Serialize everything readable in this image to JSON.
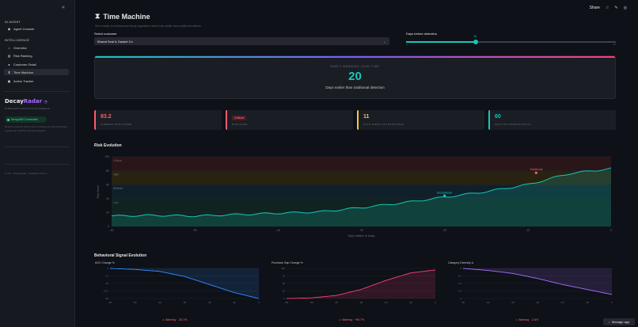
{
  "sidebar": {
    "agent_section": "AI AGENT",
    "agent_items": [
      {
        "icon": "robot-icon",
        "label": "Agent Console"
      }
    ],
    "intel_section": "INTELLIGENCE",
    "intel_items": [
      {
        "icon": "home-icon",
        "label": "Overview"
      },
      {
        "icon": "ranking-icon",
        "label": "Risk Ranking"
      },
      {
        "icon": "user-icon",
        "label": "Customer Detail"
      },
      {
        "icon": "hourglass-icon",
        "label": "Time Machine"
      },
      {
        "icon": "clipboard-icon",
        "label": "Action Tracker"
      }
    ],
    "brand_part1": "Decay",
    "brand_part2": "Radar",
    "brand_sub": "AI Behavioral Customer Decay Intelligence",
    "mongo_label": "MongoDB Connected",
    "desc": "Detects customer decay before it happens using behavioral signals and machine learning analytics.",
    "footer": "v1.0.0 · DecayRadar · Hackathon Demo"
  },
  "topbar": {
    "share": "Share"
  },
  "page": {
    "title": "Time Machine",
    "subtitle": "See exactly how behavioral decay algorithms detect risk earlier than traditional metrics",
    "select_label": "Select customer",
    "selected_customer": "Bharat Seal & Gasket Co",
    "slider_label": "Days before detection",
    "slider_value": "20",
    "slider_min": "0",
    "slider_max": "60"
  },
  "hero": {
    "caption": "EARLY WARNING LEAD TIME",
    "value": "20",
    "sub": "Days earlier than traditional detection"
  },
  "kpis": [
    {
      "value": "83.2",
      "label": "CURRENT RISK SCORE",
      "color": "#ff5c6c"
    },
    {
      "value": "Critical",
      "label": "RISK LEVEL",
      "color": "#ff5c6c"
    },
    {
      "value": "11",
      "label": "DAYS AHEAD OF TRADITIONAL",
      "color": "#f5c542"
    },
    {
      "value": "60",
      "label": "ANALYSIS WINDOW (DAYS)",
      "color": "#14c8b8"
    }
  ],
  "risk_section": "Risk Evolution",
  "signal_section": "Behavioral Signal Evolution",
  "chart_data": [
    {
      "type": "line",
      "title": "",
      "xlabel": "Days relative to today",
      "ylabel": "Risk Score",
      "x": [
        -60,
        -55,
        -50,
        -45,
        -40,
        -35,
        -30,
        -25,
        -20,
        -15,
        -10,
        -5,
        0
      ],
      "series": [
        {
          "values": [
            15,
            16,
            15,
            17,
            19,
            21,
            27,
            34,
            42,
            50,
            60,
            76,
            83
          ]
        }
      ],
      "ylim": [
        0,
        100
      ],
      "xlim": [
        -60,
        0
      ],
      "zones": [
        "Critical",
        "High",
        "Medium",
        "Low"
      ],
      "annotations": [
        {
          "label": "DecayRadar",
          "x": -20,
          "y": 44
        },
        {
          "label": "Traditional",
          "x": -9,
          "y": 77
        }
      ],
      "grid": true
    },
    {
      "type": "line",
      "title": "AOV Change %",
      "x": [
        -60,
        -50,
        -40,
        -30,
        -20,
        -10,
        0
      ],
      "series": [
        {
          "values": [
            0,
            -1,
            -3,
            -8,
            -16,
            -24,
            -30
          ]
        }
      ],
      "ylim": [
        -30,
        0
      ]
    },
    {
      "type": "line",
      "title": "Purchase Gap Change %",
      "x": [
        -60,
        -50,
        -40,
        -30,
        -20,
        -10,
        0
      ],
      "series": [
        {
          "values": [
            0,
            2,
            10,
            30,
            60,
            85,
            95
          ]
        }
      ],
      "ylim": [
        0,
        100
      ]
    },
    {
      "type": "line",
      "title": "Category Diversity Δ",
      "x": [
        -60,
        -50,
        -40,
        -30,
        -20,
        -10,
        0
      ],
      "series": [
        {
          "values": [
            0,
            -0.2,
            -0.5,
            -1.0,
            -1.6,
            -2.1,
            -2.6
          ]
        }
      ],
      "ylim": [
        -3,
        0
      ]
    }
  ],
  "warnings": [
    "Warning · -30.1%",
    "Warning · +95.7%",
    "Warning · -2.6%"
  ],
  "manage_app": "Manage app"
}
